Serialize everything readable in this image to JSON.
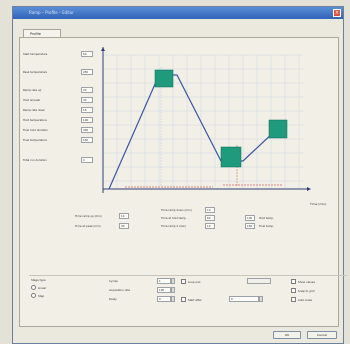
{
  "window": {
    "title": "Ramp – Profile – Editor",
    "close_label": "×"
  },
  "tab": {
    "label": "Profile"
  },
  "left_params": [
    {
      "label": "Start temperature",
      "value": "50"
    },
    {
      "label": "Peak temperature",
      "value": "250"
    },
    {
      "label": "Ramp rate up",
      "value": "20"
    },
    {
      "label": "Hold at peak",
      "value": "30"
    },
    {
      "label": "Ramp rate down",
      "value": "15"
    },
    {
      "label": "Hold temperature",
      "value": "100"
    },
    {
      "label": "Final hold duration",
      "value": "300"
    },
    {
      "label": "Final temperature",
      "value": "150"
    },
    {
      "label": "Total run duration",
      "value": "0"
    }
  ],
  "chart": {
    "x_unit_label": "Time (min)",
    "color_block": "#1f9a7c"
  },
  "below_chart": {
    "left": [
      {
        "label": "Time ramp up (min)",
        "value": "10"
      },
      {
        "label": "Time at peak (min)",
        "value": "30"
      }
    ],
    "middle": [
      {
        "label": "Time ramp down (min)",
        "value": "10"
      },
      {
        "label": "Time at hold temp.",
        "value": "60"
      },
      {
        "label": "Time ramp 2 (min)",
        "value": "10"
      }
    ],
    "right": [
      {
        "value": "100",
        "label": "Hold temp."
      },
      {
        "value": "150",
        "label": "Final temp."
      }
    ]
  },
  "bottom": {
    "group_label": "Stage type",
    "radio_options": [
      "Linear",
      "Step"
    ],
    "rows": [
      {
        "label": "Cycles",
        "value": "1"
      },
      {
        "label": "Acquisition rate",
        "value": "100"
      },
      {
        "label": "Delay",
        "value": "0"
      }
    ],
    "middle_label_1": "Loop end",
    "middle_label_2": "Start after",
    "middle_value_2": "0",
    "checkboxes": [
      "Show values",
      "Snap to grid",
      "Auto scale"
    ]
  },
  "buttons": {
    "ok": "OK",
    "cancel": "Cancel"
  }
}
